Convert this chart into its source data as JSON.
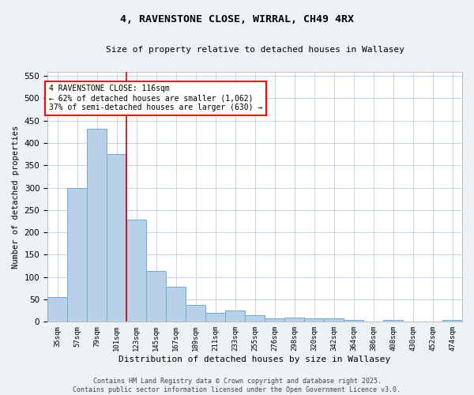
{
  "title": "4, RAVENSTONE CLOSE, WIRRAL, CH49 4RX",
  "subtitle": "Size of property relative to detached houses in Wallasey",
  "xlabel": "Distribution of detached houses by size in Wallasey",
  "ylabel": "Number of detached properties",
  "bar_color": "#b8d0e8",
  "bar_edge_color": "#6baed6",
  "categories": [
    "35sqm",
    "57sqm",
    "79sqm",
    "101sqm",
    "123sqm",
    "145sqm",
    "167sqm",
    "189sqm",
    "211sqm",
    "233sqm",
    "255sqm",
    "276sqm",
    "298sqm",
    "320sqm",
    "342sqm",
    "364sqm",
    "386sqm",
    "408sqm",
    "430sqm",
    "452sqm",
    "474sqm"
  ],
  "values": [
    55,
    300,
    432,
    375,
    228,
    113,
    78,
    37,
    20,
    25,
    15,
    7,
    9,
    7,
    8,
    4,
    1,
    5,
    0,
    0,
    5
  ],
  "ylim": [
    0,
    560
  ],
  "yticks": [
    0,
    50,
    100,
    150,
    200,
    250,
    300,
    350,
    400,
    450,
    500,
    550
  ],
  "vline_x": 4,
  "vline_color": "#cc0000",
  "annotation_line1": "4 RAVENSTONE CLOSE: 116sqm",
  "annotation_line2": "← 62% of detached houses are smaller (1,062)",
  "annotation_line3": "37% of semi-detached houses are larger (630) →",
  "footer": "Contains HM Land Registry data © Crown copyright and database right 2025.\nContains public sector information licensed under the Open Government Licence v3.0.",
  "background_color": "#eef2f7",
  "plot_bg_color": "#ffffff",
  "grid_color": "#c5d5e5"
}
